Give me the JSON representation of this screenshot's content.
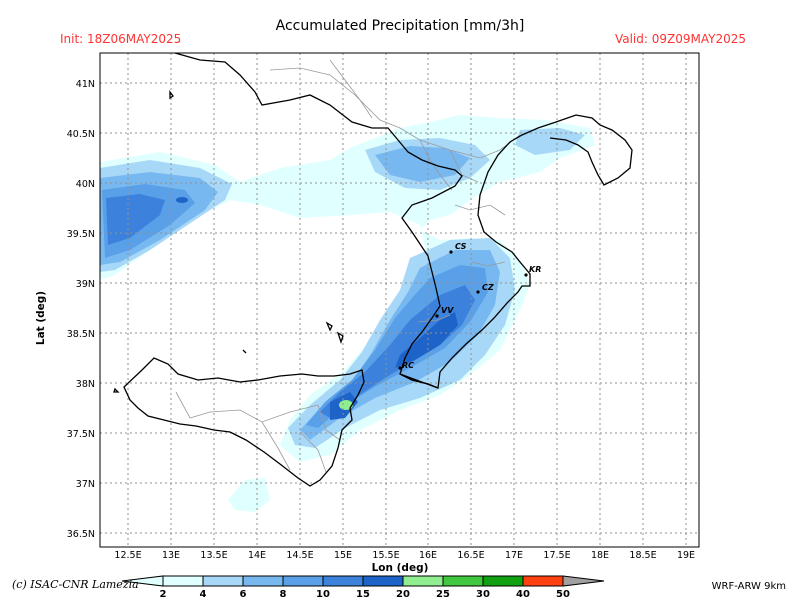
{
  "header": {
    "title": "Accumulated Precipitation [mm/3h]",
    "init": "Init: 18Z06MAY2025",
    "valid": "Valid: 09Z09MAY2025"
  },
  "axes": {
    "xlabel": "Lon (deg)",
    "ylabel": "Lat (deg)",
    "x_ticks": [
      "12.5E",
      "13E",
      "13.5E",
      "14E",
      "14.5E",
      "15E",
      "15.5E",
      "16E",
      "16.5E",
      "17E",
      "17.5E",
      "18E",
      "18.5E",
      "19E"
    ],
    "y_ticks": [
      "41N",
      "40.5N",
      "40N",
      "39.5N",
      "39N",
      "38.5N",
      "38N",
      "37.5N",
      "37N",
      "36.5N"
    ],
    "xlim": [
      12.2,
      19.2
    ],
    "ylim": [
      36.35,
      41.3
    ],
    "grid": true
  },
  "cities": [
    "CS",
    "KR",
    "CZ",
    "VV",
    "RC"
  ],
  "colorbar": {
    "levels": [
      "2",
      "4",
      "6",
      "8",
      "10",
      "15",
      "20",
      "25",
      "30",
      "40",
      "50"
    ],
    "colors": [
      "#e0ffff",
      "#a8d8f8",
      "#78b8f0",
      "#5aa0e8",
      "#3c82dc",
      "#1e64c8",
      "#90ee90",
      "#40c840",
      "#10a010",
      "#ff4010",
      "#a0a0a0"
    ]
  },
  "footer": {
    "credit": "(c) ISAC-CNR Lamezia",
    "model": "WRF-ARW 9km"
  }
}
